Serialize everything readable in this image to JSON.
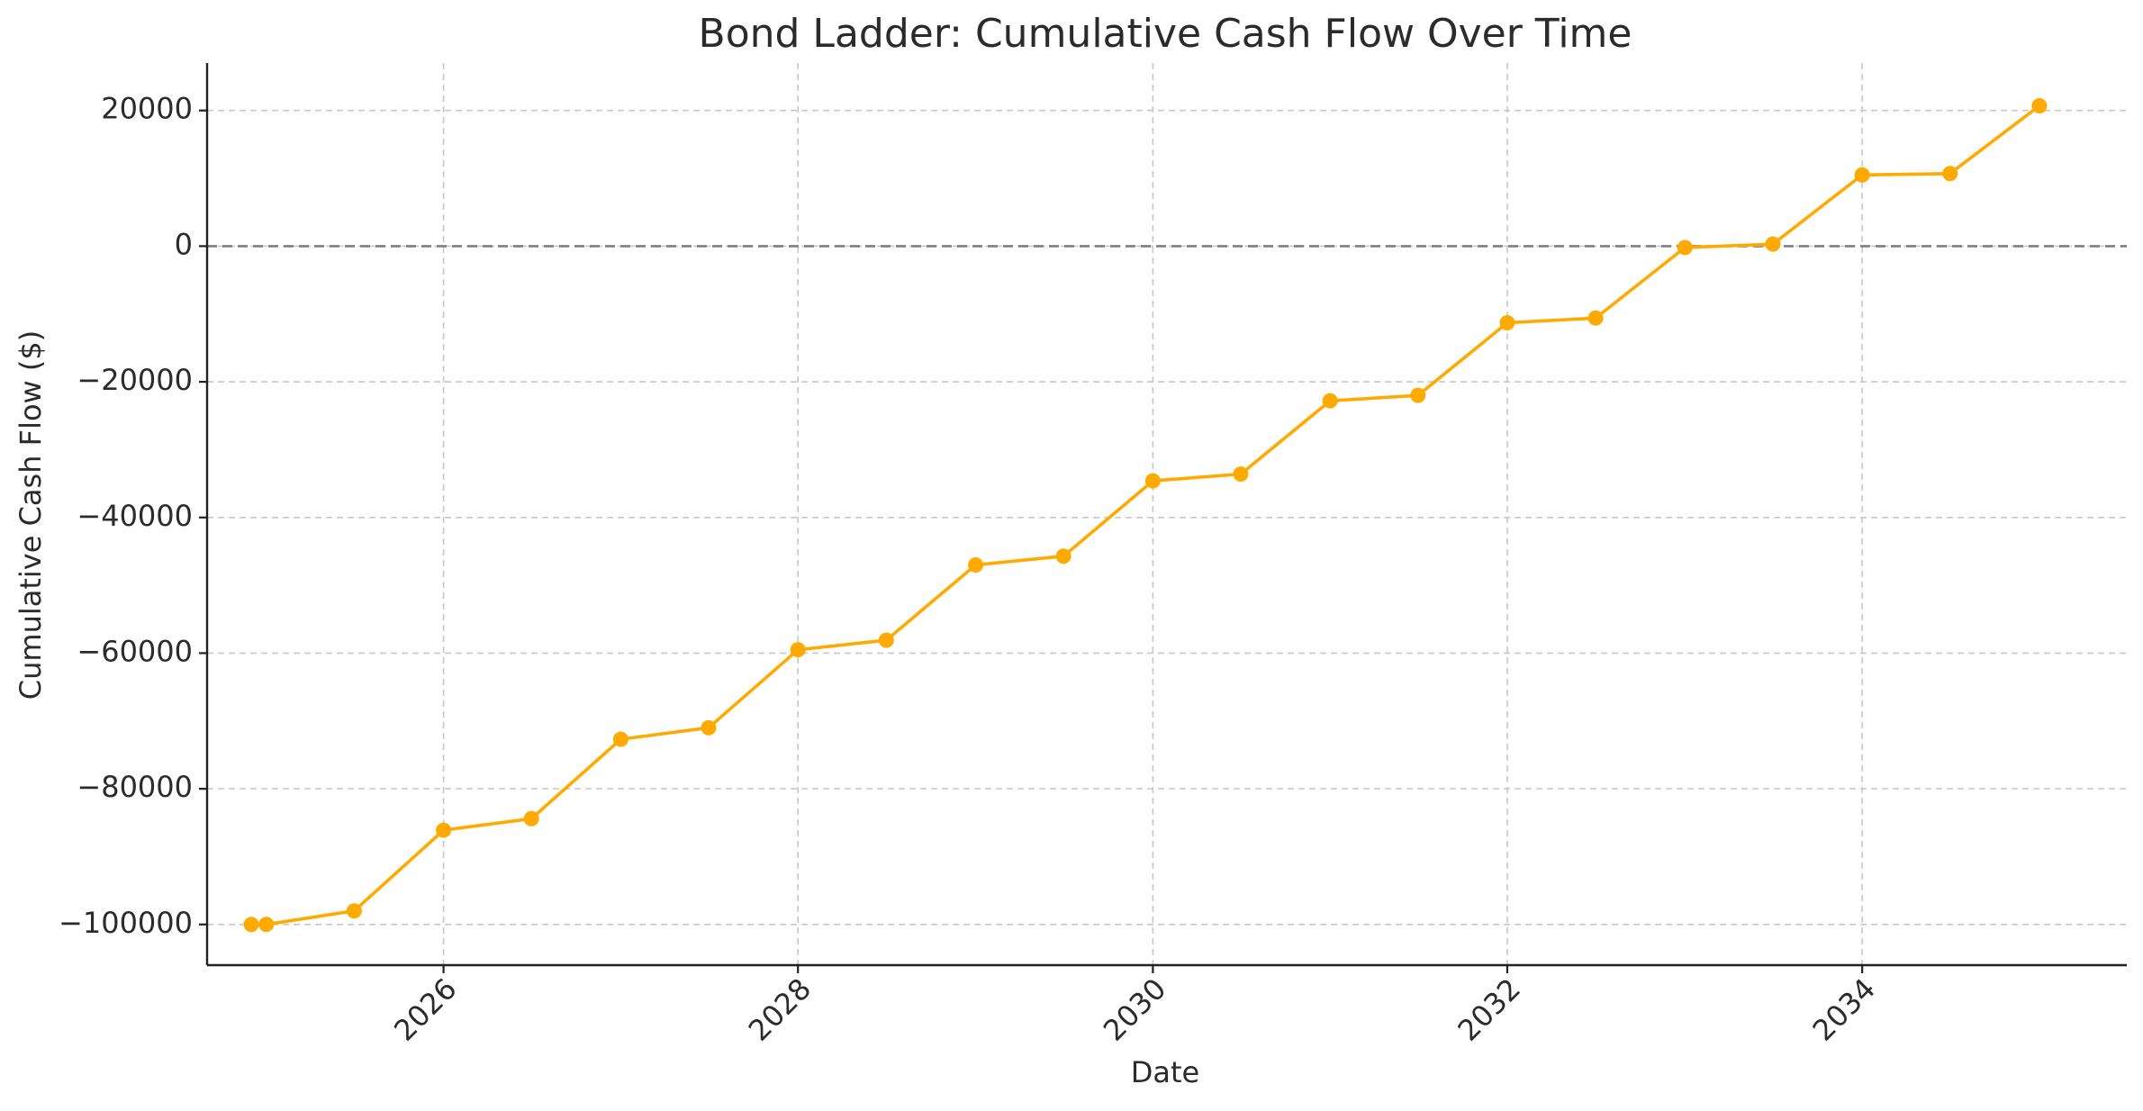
{
  "chart_data": {
    "type": "line",
    "title": "Bond Ladder: Cumulative Cash Flow Over Time",
    "xlabel": "Date",
    "ylabel": "Cumulative Cash Flow ($)",
    "x_is_date": true,
    "xlim": [
      "2024-09-01",
      "2035-06-30"
    ],
    "ylim": [
      -106000,
      27000
    ],
    "x_ticks": [
      "2026-01-01",
      "2028-01-01",
      "2030-01-01",
      "2032-01-01",
      "2034-01-01"
    ],
    "x_tick_labels": [
      "2026",
      "2028",
      "2030",
      "2032",
      "2034"
    ],
    "y_ticks": [
      20000,
      0,
      -20000,
      -40000,
      -60000,
      -80000,
      -100000
    ],
    "y_tick_labels": [
      "20000",
      "0",
      "−20000",
      "−40000",
      "−60000",
      "−80000",
      "−100000"
    ],
    "grid": true,
    "reference_line": {
      "y": 0,
      "style": "dashed",
      "color": "#7f7f7f"
    },
    "series": [
      {
        "color": "#FFAA00",
        "marker": "circle",
        "x": [
          "2024-12-01",
          "2025-01-01",
          "2025-07-01",
          "2026-01-01",
          "2026-07-01",
          "2027-01-01",
          "2027-07-01",
          "2028-01-01",
          "2028-07-01",
          "2029-01-01",
          "2029-07-01",
          "2030-01-01",
          "2030-07-01",
          "2031-01-01",
          "2031-07-01",
          "2032-01-01",
          "2032-07-01",
          "2033-01-01",
          "2033-07-01",
          "2034-01-01",
          "2034-07-01",
          "2035-01-01"
        ],
        "values": [
          -100000,
          -100000,
          -98000,
          -86100,
          -84400,
          -72700,
          -71000,
          -59500,
          -58100,
          -47000,
          -45700,
          -34600,
          -33600,
          -22800,
          -22000,
          -11300,
          -10600,
          -200,
          300,
          10500,
          10700,
          20700
        ]
      }
    ]
  }
}
